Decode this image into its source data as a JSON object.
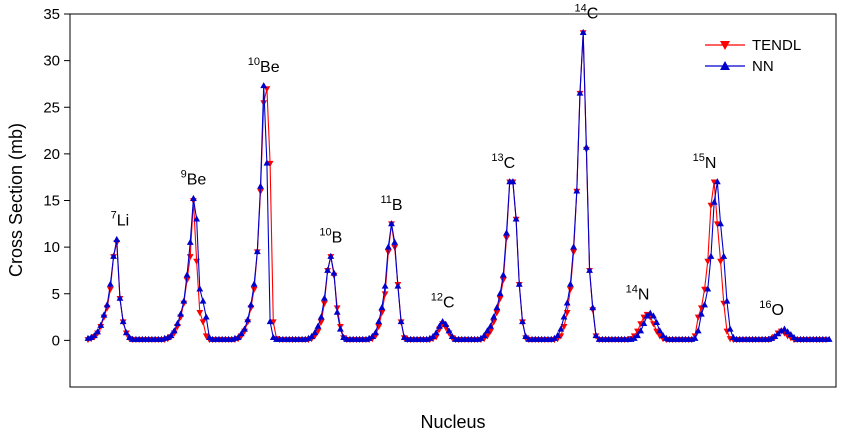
{
  "chart_data": {
    "type": "line",
    "title": "",
    "xlabel": "Nucleus",
    "ylabel": "Cross Section (mb)",
    "ylim": [
      -5,
      35
    ],
    "yticks": [
      0,
      5,
      10,
      15,
      20,
      25,
      30,
      35
    ],
    "grid": false,
    "legend_position": "top-right",
    "n_points": 166,
    "series": [
      {
        "name": "TENDL",
        "color": "#ff0000",
        "marker": "triangle-down",
        "values": [
          0.1,
          0.2,
          0.4,
          0.8,
          1.5,
          2.5,
          3.5,
          5.5,
          9,
          10.5,
          4.5,
          2,
          0.8,
          0.2,
          0.1,
          0.1,
          0.1,
          0.1,
          0.1,
          0.1,
          0.1,
          0.1,
          0.1,
          0.1,
          0.1,
          0.2,
          0.4,
          0.8,
          1.5,
          2.5,
          4,
          6.5,
          9,
          15,
          8.5,
          3,
          2,
          0.5,
          0.1,
          0.1,
          0.1,
          0.1,
          0.1,
          0.1,
          0.1,
          0.1,
          0.1,
          0.2,
          0.5,
          1,
          2,
          3.5,
          5.5,
          9.5,
          16,
          25.5,
          27,
          19,
          2,
          0.2,
          0.1,
          0.1,
          0.1,
          0.1,
          0.1,
          0.1,
          0.1,
          0.1,
          0.1,
          0.1,
          0.2,
          0.5,
          1,
          2,
          4,
          7.5,
          9,
          7,
          3.5,
          1.5,
          0.3,
          0.1,
          0.1,
          0.1,
          0.1,
          0.1,
          0.1,
          0.1,
          0.1,
          0.2,
          0.5,
          1.5,
          3,
          5,
          9.5,
          12.5,
          10,
          6,
          2,
          0.3,
          0.1,
          0.1,
          0.1,
          0.1,
          0.1,
          0.1,
          0.1,
          0.1,
          0.2,
          0.4,
          1.2,
          1.8,
          1.4,
          0.8,
          0.3,
          0.1,
          0.1,
          0.1,
          0.1,
          0.1,
          0.1,
          0.1,
          0.1,
          0.1,
          0.2,
          0.5,
          1,
          2,
          3,
          4.5,
          6.5,
          11,
          17,
          17,
          13,
          6,
          2,
          0.3,
          0.1,
          0.1,
          0.1,
          0.1,
          0.1,
          0.1,
          0.1,
          0.1,
          0.1,
          0.2,
          0.5,
          1.5,
          3,
          5.5,
          9.5,
          16,
          26.5,
          33,
          20.5,
          7.5,
          3.3,
          0.5,
          0.1,
          0.1,
          0.1,
          0.1,
          0.1,
          0.1,
          0.1,
          0.1,
          0.1
        ]
      },
      {
        "name": "NN",
        "color": "#0000cc",
        "marker": "triangle-up",
        "values": [
          0.2,
          0.3,
          0.5,
          0.9,
          1.6,
          2.7,
          3.8,
          6,
          9,
          10.8,
          4.5,
          2,
          0.8,
          0.3,
          0.1,
          0.1,
          0.1,
          0.1,
          0.1,
          0.1,
          0.1,
          0.1,
          0.1,
          0.1,
          0.2,
          0.3,
          0.5,
          1,
          1.8,
          2.8,
          4.2,
          7,
          10.5,
          15.2,
          13,
          5.5,
          4.2,
          2.5,
          0.3,
          0.1,
          0.1,
          0.1,
          0.1,
          0.1,
          0.1,
          0.1,
          0.2,
          0.3,
          0.7,
          1.2,
          2.2,
          3.8,
          6,
          9.5,
          16.5,
          27.3,
          19,
          2,
          0.3,
          0.1,
          0.1,
          0.1,
          0.1,
          0.1,
          0.1,
          0.1,
          0.1,
          0.1,
          0.1,
          0.2,
          0.4,
          0.8,
          1.5,
          2.5,
          4.5,
          7.5,
          9,
          7.2,
          3,
          1.2,
          0.3,
          0.1,
          0.1,
          0.1,
          0.1,
          0.1,
          0.1,
          0.1,
          0.2,
          0.4,
          0.8,
          2,
          3.5,
          5.8,
          10,
          12.5,
          10.5,
          5.8,
          2,
          0.3,
          0.1,
          0.1,
          0.1,
          0.1,
          0.1,
          0.1,
          0.1,
          0.2,
          0.4,
          0.8,
          1.5,
          2,
          1.7,
          1,
          0.4,
          0.1,
          0.1,
          0.1,
          0.1,
          0.1,
          0.1,
          0.1,
          0.1,
          0.2,
          0.5,
          1,
          1.5,
          2.5,
          3.5,
          5,
          7,
          11.5,
          17,
          17,
          13,
          6,
          2,
          0.4,
          0.1,
          0.1,
          0.1,
          0.1,
          0.1,
          0.1,
          0.1,
          0.1,
          0.2,
          0.5,
          1.2,
          2.5,
          4,
          6,
          10,
          16,
          26.5,
          33,
          20.7,
          7.5,
          3.5,
          0.5,
          0.1,
          0.1,
          0.1,
          0.1,
          0.1,
          0.1,
          0.1,
          0.1,
          0.1,
          0.1
        ]
      }
    ],
    "tail_segments": [
      {
        "series": "TENDL",
        "values": [
          0.1,
          0.2,
          0.5,
          1,
          1.8,
          2.5,
          2.8,
          2.5,
          1.8,
          1,
          0.5,
          0.2,
          0.1,
          0.1,
          0.1,
          0.1,
          0.1,
          0.1,
          0.1,
          0.1,
          0.1,
          0.5,
          2.5,
          3.5,
          5.5,
          8.5,
          14.5,
          17,
          12.5,
          8.5,
          4,
          1,
          0.2,
          0.1,
          0.1,
          0.1,
          0.1,
          0.1,
          0.1,
          0.1,
          0.1,
          0.1,
          0.1,
          0.1,
          0.1,
          0.2,
          0.4,
          0.8,
          1,
          0.8,
          0.5,
          0.3,
          0.1,
          0.1,
          0.1,
          0.1,
          0.1,
          0.1,
          0.1,
          0.1,
          0.1,
          0.1,
          0.1
        ]
      },
      {
        "series": "NN",
        "values": [
          0.1,
          0.2,
          0.5,
          1,
          1.8,
          2.6,
          2.9,
          2.6,
          1.9,
          1,
          0.5,
          0.2,
          0.1,
          0.1,
          0.1,
          0.1,
          0.1,
          0.1,
          0.1,
          0.1,
          0.2,
          1,
          2.8,
          3.8,
          5.5,
          9,
          14.8,
          17,
          12.5,
          9,
          4.2,
          1.2,
          0.3,
          0.1,
          0.1,
          0.1,
          0.1,
          0.1,
          0.1,
          0.1,
          0.1,
          0.1,
          0.1,
          0.1,
          0.2,
          0.4,
          0.7,
          1,
          1.2,
          0.9,
          0.6,
          0.3,
          0.1,
          0.1,
          0.1,
          0.1,
          0.1,
          0.1,
          0.1,
          0.1,
          0.1,
          0.1,
          0.1
        ]
      }
    ],
    "annotations": [
      {
        "mass": "7",
        "element": "Li",
        "index": 10,
        "value": 10.8
      },
      {
        "mass": "9",
        "element": "Be",
        "index": 33,
        "value": 15.2
      },
      {
        "mass": "10",
        "element": "Be",
        "index": 55,
        "value": 27.3
      },
      {
        "mass": "10",
        "element": "B",
        "index": 76,
        "value": 9
      },
      {
        "mass": "11",
        "element": "B",
        "index": 95,
        "value": 12.5
      },
      {
        "mass": "12",
        "element": "C",
        "index": 111,
        "value": 2
      },
      {
        "mass": "13",
        "element": "C",
        "index": 130,
        "value": 17
      },
      {
        "mass": "14",
        "element": "C",
        "index": 156,
        "value": 33
      },
      {
        "mass": "14",
        "element": "N",
        "index": 172,
        "value": 2.9
      },
      {
        "mass": "15",
        "element": "N",
        "index": 193,
        "value": 17
      },
      {
        "mass": "16",
        "element": "O",
        "index": 214,
        "value": 1.2
      }
    ]
  }
}
